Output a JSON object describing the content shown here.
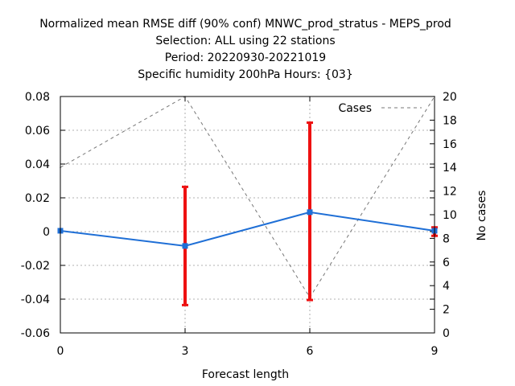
{
  "chart_data": {
    "type": "line",
    "title_lines": [
      "Normalized mean RMSE diff (90% conf) MNWC_prod_stratus - MEPS_prod",
      "Selection: ALL using    22 stations",
      "Period: 20220930-20221019",
      "Specific humidity 200hPa  Hours: {03}"
    ],
    "xlabel": "Forecast length",
    "ylabel": "",
    "y2label": "No cases",
    "x": [
      0,
      3,
      6,
      9
    ],
    "xlim": [
      0,
      9
    ],
    "xticks": [
      "0",
      "3",
      "6",
      "9"
    ],
    "ylim": [
      -0.06,
      0.08
    ],
    "yticks": [
      "-0.06",
      "-0.04",
      "-0.02",
      "0",
      "0.02",
      "0.04",
      "0.06",
      "0.08"
    ],
    "y2lim": [
      0,
      20
    ],
    "y2ticks": [
      "0",
      "2",
      "4",
      "6",
      "8",
      "10",
      "12",
      "14",
      "16",
      "18",
      "20"
    ],
    "grid": true,
    "legend_position": "top-right",
    "series": [
      {
        "values": [
          0.0005,
          -0.0085,
          0.0115,
          0.0005
        ],
        "ci_low": [
          0.0005,
          -0.0435,
          -0.0405,
          -0.0025
        ],
        "ci_high": [
          0.0005,
          0.0265,
          0.0645,
          0.0025
        ],
        "axis": "left",
        "color": "#1f6fd6",
        "error_color": "#ee1111"
      },
      {
        "name": "Cases",
        "values": [
          14,
          20,
          3,
          20
        ],
        "axis": "right",
        "color": "#777777",
        "style": "dashed"
      }
    ]
  }
}
